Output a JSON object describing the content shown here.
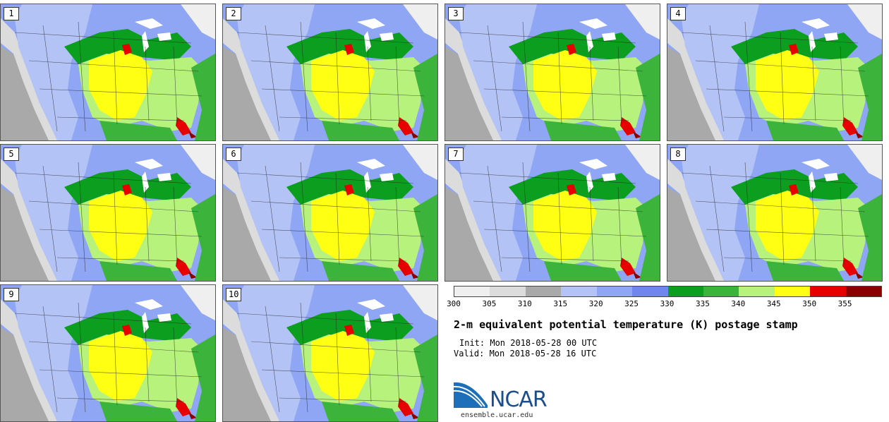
{
  "panels": [
    {
      "label": "1"
    },
    {
      "label": "2"
    },
    {
      "label": "3"
    },
    {
      "label": "4"
    },
    {
      "label": "5"
    },
    {
      "label": "6"
    },
    {
      "label": "7"
    },
    {
      "label": "8"
    },
    {
      "label": "9"
    },
    {
      "label": "10"
    }
  ],
  "colorbar": {
    "colors": [
      "#efefef",
      "#dcdcdc",
      "#a9a9a9",
      "#b4c3f6",
      "#8fa6f4",
      "#6f86ee",
      "#0b9e1f",
      "#3cb43c",
      "#b7f27c",
      "#ffff14",
      "#e60000",
      "#8b0000"
    ],
    "ticks": [
      "300",
      "305",
      "310",
      "315",
      "320",
      "325",
      "330",
      "335",
      "340",
      "345",
      "350",
      "355"
    ]
  },
  "title": "2-m equivalent potential temperature (K) postage stamp",
  "init": "Init: Mon 2018-05-28 00 UTC",
  "valid": "Valid: Mon 2018-05-28 16 UTC",
  "logo": {
    "text": "NCAR",
    "site": "ensemble.ucar.edu"
  }
}
